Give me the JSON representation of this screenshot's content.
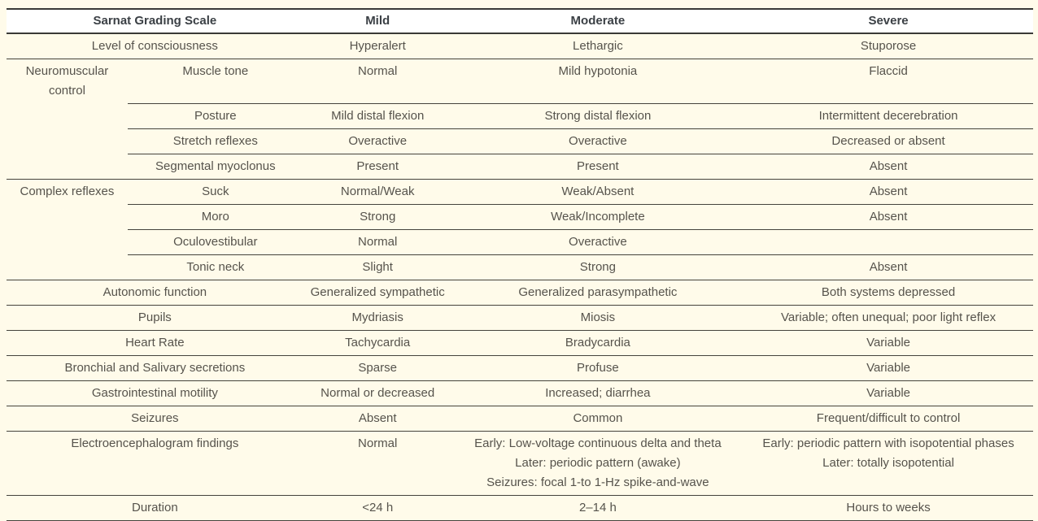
{
  "colors": {
    "page_bg": "#FFFBEA",
    "header_bg": "#FFFFFF",
    "border_dark": "#3A3A36",
    "border_row": "#45433C",
    "header_text": "#3B4045",
    "body_text": "#56534C"
  },
  "table": {
    "columns": [
      "Sarnat Grading Scale",
      "Mild",
      "Moderate",
      "Severe"
    ],
    "rows": [
      {
        "type": "span",
        "label": "Level of consciousness",
        "mild": "Hyperalert",
        "moderate": "Lethargic",
        "severe": "Stuporose",
        "divider": "full"
      },
      {
        "type": "group",
        "category": "Neuromuscular control",
        "item": "Muscle tone",
        "mild": "Normal",
        "moderate": "Mild hypotonia",
        "severe": "Flaccid",
        "divider": "partial"
      },
      {
        "type": "sub",
        "category": "",
        "item": "Posture",
        "mild": "Mild distal flexion",
        "moderate": "Strong distal flexion",
        "severe": "Intermittent decerebration",
        "divider": "partial"
      },
      {
        "type": "sub",
        "category": "",
        "item": "Stretch reflexes",
        "mild": "Overactive",
        "moderate": "Overactive",
        "severe": "Decreased or absent",
        "divider": "partial"
      },
      {
        "type": "sub",
        "category": "",
        "item": "Segmental myoclonus",
        "mild": "Present",
        "moderate": "Present",
        "severe": "Absent",
        "divider": "full"
      },
      {
        "type": "group",
        "category": "Complex reflexes",
        "item": "Suck",
        "mild": "Normal/Weak",
        "moderate": "Weak/Absent",
        "severe": "Absent",
        "divider": "partial"
      },
      {
        "type": "sub",
        "category": "",
        "item": "Moro",
        "mild": "Strong",
        "moderate": "Weak/Incomplete",
        "severe": "Absent",
        "divider": "partial"
      },
      {
        "type": "sub",
        "category": "",
        "item": "Oculovestibular",
        "mild": "Normal",
        "moderate": "Overactive",
        "severe": "",
        "divider": "partial"
      },
      {
        "type": "sub",
        "category": "",
        "item": "Tonic neck",
        "mild": "Slight",
        "moderate": "Strong",
        "severe": "Absent",
        "divider": "full"
      },
      {
        "type": "span",
        "label": "Autonomic function",
        "mild": "Generalized sympathetic",
        "moderate": "Generalized parasympathetic",
        "severe": "Both systems depressed",
        "divider": "full"
      },
      {
        "type": "span",
        "label": "Pupils",
        "mild": "Mydriasis",
        "moderate": "Miosis",
        "severe": "Variable; often unequal; poor light reflex",
        "divider": "full"
      },
      {
        "type": "span",
        "label": "Heart Rate",
        "mild": "Tachycardia",
        "moderate": "Bradycardia",
        "severe": "Variable",
        "divider": "full"
      },
      {
        "type": "span",
        "label": "Bronchial and Salivary secretions",
        "mild": "Sparse",
        "moderate": "Profuse",
        "severe": "Variable",
        "divider": "full"
      },
      {
        "type": "span",
        "label": "Gastrointestinal motility",
        "mild": "Normal or decreased",
        "moderate": "Increased; diarrhea",
        "severe": "Variable",
        "divider": "full"
      },
      {
        "type": "span",
        "label": "Seizures",
        "mild": "Absent",
        "moderate": "Common",
        "severe": "Frequent/difficult to control",
        "divider": "full"
      },
      {
        "type": "span",
        "label": "Electroencephalogram findings",
        "mild": "Normal",
        "moderate": [
          "Early: Low-voltage continuous delta and theta",
          "Later: periodic pattern (awake)",
          "Seizures: focal 1-to 1-Hz spike-and-wave"
        ],
        "severe": [
          "Early: periodic pattern with isopotential phases",
          "Later: totally isopotential"
        ],
        "divider": "full"
      },
      {
        "type": "span",
        "label": "Duration",
        "mild": "<24 h",
        "moderate": "2–14 h",
        "severe": "Hours to weeks",
        "divider": "full"
      }
    ]
  }
}
